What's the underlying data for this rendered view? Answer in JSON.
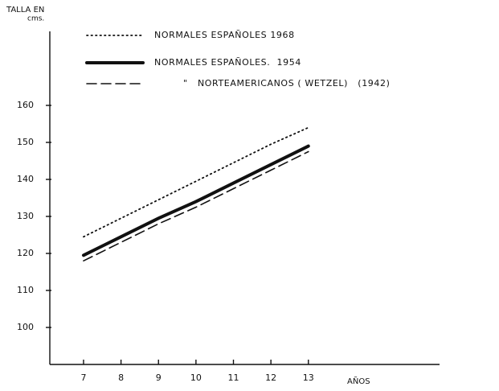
{
  "chart_data": {
    "type": "line",
    "ylabel": "TALLA EN",
    "ylabel_unit": "cms.",
    "xlabel": "AÑOS",
    "x": [
      7,
      8,
      9,
      10,
      11,
      12,
      13
    ],
    "series": [
      {
        "name": "NORMALES ESPAÑOLES 1968",
        "color": "#111111",
        "dash": "dotted",
        "values": [
          124.5,
          129.5,
          134.5,
          139.5,
          144.5,
          149.5,
          154
        ]
      },
      {
        "name": "NORMALES ESPAÑOLES.  1954",
        "color": "#111111",
        "dash": "solid",
        "values": [
          119.5,
          124.5,
          129.5,
          134,
          139,
          144,
          149
        ]
      },
      {
        "name": "\"   NORTEAMERICANOS ( WETZEL)   (1942)",
        "color": "#111111",
        "dash": "dashed",
        "values": [
          118,
          123,
          128,
          132.5,
          137.5,
          142.5,
          147.5
        ]
      }
    ],
    "xlim": [
      6.1,
      16.5
    ],
    "xticks": [
      7,
      8,
      9,
      10,
      11,
      12,
      13
    ],
    "ylim": [
      90,
      180
    ],
    "yticks": [
      100,
      110,
      120,
      130,
      140,
      150,
      160
    ],
    "grid": false
  }
}
